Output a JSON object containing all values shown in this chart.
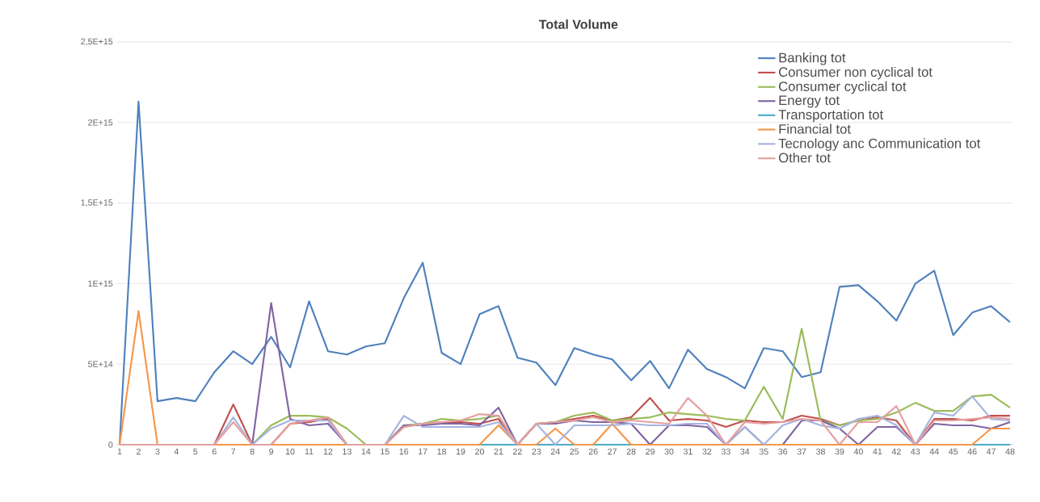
{
  "chart_data": {
    "type": "line",
    "title": "Total Volume",
    "categories": [
      "1",
      "2",
      "3",
      "4",
      "5",
      "6",
      "7",
      "8",
      "9",
      "10",
      "11",
      "12",
      "13",
      "14",
      "15",
      "16",
      "17",
      "18",
      "19",
      "20",
      "21",
      "22",
      "23",
      "24",
      "25",
      "26",
      "27",
      "28",
      "29",
      "30",
      "31",
      "32",
      "33",
      "34",
      "35",
      "36",
      "37",
      "38",
      "39",
      "40",
      "41",
      "42",
      "43",
      "44",
      "45",
      "46",
      "47",
      "48"
    ],
    "ylim": [
      0,
      2500000000000000.0
    ],
    "yticks": [
      0,
      {
        "value": 500000000000000.0,
        "label": "5E+14"
      },
      {
        "value": 1000000000000000.0,
        "label": "1E+15"
      },
      {
        "value": 1500000000000000.0,
        "label": "1,5E+15"
      },
      {
        "value": 2000000000000000.0,
        "label": "2E+15"
      },
      {
        "value": 2500000000000000.0,
        "label": "2,5E+15"
      }
    ],
    "grid": "y",
    "legend": "top right",
    "series": [
      {
        "name": "Banking tot",
        "color": "#4f81bd",
        "values": [
          0,
          2130000000000000.0,
          270000000000000.0,
          290000000000000.0,
          270000000000000.0,
          450000000000000.0,
          580000000000000.0,
          500000000000000.0,
          670000000000000.0,
          480000000000000.0,
          890000000000000.0,
          580000000000000.0,
          560000000000000.0,
          610000000000000.0,
          630000000000000.0,
          910000000000000.0,
          1130000000000000.0,
          570000000000000.0,
          500000000000000.0,
          810000000000000.0,
          860000000000000.0,
          540000000000000.0,
          510000000000000.0,
          370000000000000.0,
          600000000000000.0,
          560000000000000.0,
          530000000000000.0,
          400000000000000.0,
          520000000000000.0,
          350000000000000.0,
          590000000000000.0,
          470000000000000.0,
          420000000000000.0,
          350000000000000.0,
          600000000000000.0,
          580000000000000.0,
          420000000000000.0,
          450000000000000.0,
          980000000000000.0,
          990000000000000.0,
          890000000000000.0,
          770000000000000.0,
          1000000000000000.0,
          1080000000000000.0,
          680000000000000.0,
          820000000000000.0,
          860000000000000.0,
          760000000000000.0
        ]
      },
      {
        "name": "Consumer non cyclical tot",
        "color": "#c0504d",
        "values": [
          0,
          0,
          0,
          0,
          0,
          0,
          250000000000000.0,
          0,
          0,
          130000000000000.0,
          140000000000000.0,
          160000000000000.0,
          0,
          0,
          0,
          110000000000000.0,
          130000000000000.0,
          140000000000000.0,
          140000000000000.0,
          130000000000000.0,
          160000000000000.0,
          0,
          130000000000000.0,
          140000000000000.0,
          160000000000000.0,
          180000000000000.0,
          150000000000000.0,
          170000000000000.0,
          290000000000000.0,
          150000000000000.0,
          160000000000000.0,
          150000000000000.0,
          110000000000000.0,
          150000000000000.0,
          140000000000000.0,
          140000000000000.0,
          180000000000000.0,
          160000000000000.0,
          120000000000000.0,
          150000000000000.0,
          170000000000000.0,
          150000000000000.0,
          0,
          160000000000000.0,
          160000000000000.0,
          150000000000000.0,
          180000000000000.0,
          180000000000000.0
        ]
      },
      {
        "name": "Consumer cyclical tot",
        "color": "#9bbb59",
        "values": [
          null,
          null,
          null,
          null,
          null,
          null,
          0,
          0,
          120000000000000.0,
          180000000000000.0,
          180000000000000.0,
          170000000000000.0,
          100000000000000.0,
          0,
          0,
          120000000000000.0,
          130000000000000.0,
          160000000000000.0,
          150000000000000.0,
          160000000000000.0,
          180000000000000.0,
          0,
          130000000000000.0,
          140000000000000.0,
          180000000000000.0,
          200000000000000.0,
          150000000000000.0,
          160000000000000.0,
          170000000000000.0,
          200000000000000.0,
          190000000000000.0,
          180000000000000.0,
          160000000000000.0,
          150000000000000.0,
          360000000000000.0,
          160000000000000.0,
          720000000000000.0,
          150000000000000.0,
          120000000000000.0,
          150000000000000.0,
          160000000000000.0,
          200000000000000.0,
          260000000000000.0,
          210000000000000.0,
          210000000000000.0,
          300000000000000.0,
          310000000000000.0,
          230000000000000.0
        ]
      },
      {
        "name": "Energy tot",
        "color": "#8064a2",
        "values": [
          null,
          null,
          null,
          null,
          null,
          null,
          0,
          0,
          880000000000000.0,
          160000000000000.0,
          120000000000000.0,
          130000000000000.0,
          0,
          0,
          0,
          120000000000000.0,
          120000000000000.0,
          130000000000000.0,
          130000000000000.0,
          120000000000000.0,
          230000000000000.0,
          0,
          130000000000000.0,
          130000000000000.0,
          150000000000000.0,
          140000000000000.0,
          140000000000000.0,
          130000000000000.0,
          0,
          120000000000000.0,
          120000000000000.0,
          110000000000000.0,
          0,
          110000000000000.0,
          0,
          0,
          150000000000000.0,
          150000000000000.0,
          100000000000000.0,
          0,
          110000000000000.0,
          110000000000000.0,
          0,
          130000000000000.0,
          120000000000000.0,
          120000000000000.0,
          100000000000000.0,
          140000000000000.0
        ]
      },
      {
        "name": "Transportation tot",
        "color": "#4bacc6",
        "values": [
          null,
          null,
          null,
          null,
          null,
          null,
          null,
          null,
          null,
          null,
          null,
          null,
          null,
          null,
          null,
          null,
          null,
          null,
          null,
          0,
          0,
          0,
          0,
          0,
          0,
          0,
          0,
          0,
          null,
          null,
          null,
          null,
          null,
          null,
          null,
          null,
          null,
          null,
          null,
          null,
          null,
          null,
          null,
          null,
          null,
          0,
          0,
          0
        ]
      },
      {
        "name": "Financial tot",
        "color": "#f79646",
        "values": [
          0,
          830000000000000.0,
          0,
          0,
          0,
          0,
          0,
          0,
          0,
          0,
          0,
          0,
          0,
          0,
          0,
          0,
          0,
          0,
          0,
          0,
          120000000000000.0,
          0,
          0,
          100000000000000.0,
          0,
          0,
          130000000000000.0,
          0,
          0,
          0,
          0,
          0,
          0,
          0,
          0,
          0,
          0,
          0,
          0,
          0,
          0,
          0,
          0,
          0,
          0,
          0,
          100000000000000.0,
          100000000000000.0
        ]
      },
      {
        "name": "Tecnology anc Communication tot",
        "color": "#a5b4e0",
        "values": [
          0,
          0,
          0,
          0,
          0,
          0,
          170000000000000.0,
          0,
          100000000000000.0,
          150000000000000.0,
          150000000000000.0,
          150000000000000.0,
          0,
          0,
          0,
          180000000000000.0,
          110000000000000.0,
          110000000000000.0,
          110000000000000.0,
          110000000000000.0,
          140000000000000.0,
          0,
          130000000000000.0,
          0,
          120000000000000.0,
          120000000000000.0,
          120000000000000.0,
          130000000000000.0,
          120000000000000.0,
          120000000000000.0,
          130000000000000.0,
          130000000000000.0,
          0,
          110000000000000.0,
          0,
          120000000000000.0,
          160000000000000.0,
          120000000000000.0,
          100000000000000.0,
          160000000000000.0,
          180000000000000.0,
          120000000000000.0,
          0,
          200000000000000.0,
          180000000000000.0,
          300000000000000.0,
          160000000000000.0,
          150000000000000.0
        ]
      },
      {
        "name": "Other tot",
        "color": "#e6a0a0",
        "values": [
          0,
          0,
          0,
          0,
          0,
          0,
          140000000000000.0,
          0,
          0,
          130000000000000.0,
          150000000000000.0,
          170000000000000.0,
          0,
          0,
          0,
          110000000000000.0,
          130000000000000.0,
          140000000000000.0,
          150000000000000.0,
          190000000000000.0,
          180000000000000.0,
          0,
          130000000000000.0,
          140000000000000.0,
          150000000000000.0,
          170000000000000.0,
          140000000000000.0,
          150000000000000.0,
          140000000000000.0,
          130000000000000.0,
          290000000000000.0,
          180000000000000.0,
          0,
          140000000000000.0,
          130000000000000.0,
          140000000000000.0,
          160000000000000.0,
          150000000000000.0,
          0,
          140000000000000.0,
          140000000000000.0,
          240000000000000.0,
          0,
          150000000000000.0,
          150000000000000.0,
          160000000000000.0,
          170000000000000.0,
          160000000000000.0
        ]
      }
    ]
  }
}
